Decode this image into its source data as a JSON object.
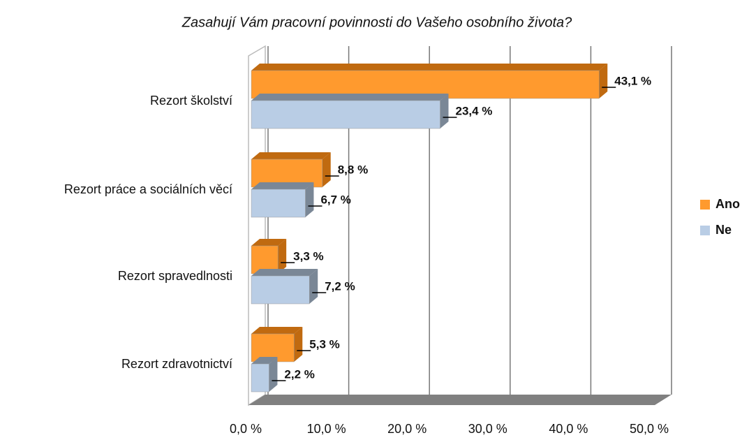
{
  "chart_data": {
    "type": "bar",
    "orientation": "horizontal",
    "title": "Zasahují Vám pracovní povinnosti do Vašeho osobního života?",
    "categories": [
      "Rezort školství",
      "Rezort práce a sociálních věcí",
      "Rezort spravedlnosti",
      "Rezort zdravotnictví"
    ],
    "series": [
      {
        "name": "Ano",
        "color": "#ff9a2e",
        "values": [
          43.1,
          8.8,
          3.3,
          5.3
        ],
        "value_labels": [
          "43,1 %",
          "8,8 %",
          "3,3 %",
          "5,3 %"
        ]
      },
      {
        "name": "Ne",
        "color": "#b9cde5",
        "values": [
          23.4,
          6.7,
          7.2,
          2.2
        ],
        "value_labels": [
          "23,4 %",
          "6,7 %",
          "7,2 %",
          "2,2 %"
        ]
      }
    ],
    "xlim": [
      0,
      50
    ],
    "xticks": [
      {
        "value": 0,
        "label": "0,0 %"
      },
      {
        "value": 10,
        "label": "10,0 %"
      },
      {
        "value": 20,
        "label": "20,0 %"
      },
      {
        "value": 30,
        "label": "30,0 %"
      },
      {
        "value": 40,
        "label": "40,0 %"
      },
      {
        "value": 50,
        "label": "50,0 %"
      }
    ],
    "grid": true,
    "legend": "right"
  }
}
